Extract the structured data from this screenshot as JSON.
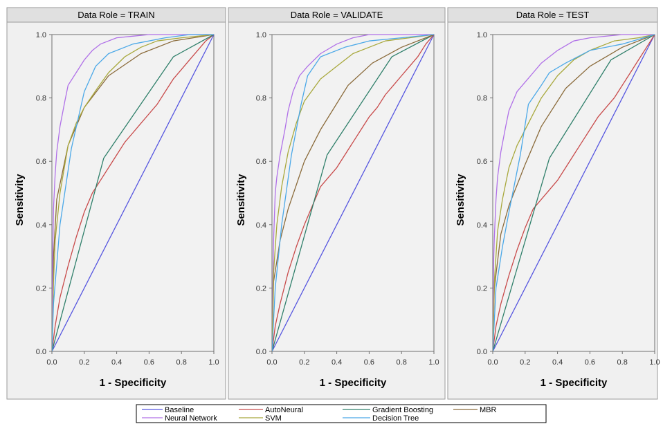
{
  "chart_data": {
    "type": "line",
    "xlabel": "1 - Specificity",
    "ylabel": "Sensitivity",
    "xlim": [
      0,
      1
    ],
    "ylim": [
      0,
      1
    ],
    "xticks": [
      "0.0",
      "0.2",
      "0.4",
      "0.6",
      "0.8",
      "1.0"
    ],
    "yticks": [
      "0.0",
      "0.2",
      "0.4",
      "0.6",
      "0.8",
      "1.0"
    ],
    "grid": false,
    "legend_position": "bottom",
    "series_styles": [
      {
        "name": "Baseline",
        "color": "#5555e0"
      },
      {
        "name": "AutoNeural",
        "color": "#c84a4a"
      },
      {
        "name": "Gradient Boosting",
        "color": "#2f7f6a"
      },
      {
        "name": "MBR",
        "color": "#8a6a3a"
      },
      {
        "name": "Neural Network",
        "color": "#b070e8"
      },
      {
        "name": "SVM",
        "color": "#a8a83c"
      },
      {
        "name": "Decision Tree",
        "color": "#4aa8e8"
      }
    ],
    "panels": [
      {
        "title": "Data Role = TRAIN",
        "series": [
          {
            "name": "Baseline",
            "x": [
              0,
              1
            ],
            "y": [
              0,
              1
            ]
          },
          {
            "name": "AutoNeural",
            "x": [
              0,
              0.02,
              0.05,
              0.1,
              0.15,
              0.2,
              0.25,
              0.3,
              0.35,
              0.4,
              0.45,
              0.5,
              0.55,
              0.6,
              0.65,
              0.7,
              0.75,
              0.8,
              0.85,
              0.9,
              0.95,
              1
            ],
            "y": [
              0,
              0.08,
              0.17,
              0.27,
              0.36,
              0.44,
              0.5,
              0.54,
              0.58,
              0.62,
              0.66,
              0.69,
              0.72,
              0.75,
              0.78,
              0.82,
              0.86,
              0.89,
              0.92,
              0.95,
              0.98,
              1
            ]
          },
          {
            "name": "Gradient Boosting",
            "x": [
              0,
              0.32,
              0.75,
              1
            ],
            "y": [
              0,
              0.61,
              0.93,
              1
            ]
          },
          {
            "name": "MBR",
            "x": [
              0,
              0.01,
              0.03,
              0.1,
              0.2,
              0.35,
              0.55,
              0.75,
              1
            ],
            "y": [
              0,
              0.3,
              0.48,
              0.65,
              0.77,
              0.87,
              0.94,
              0.98,
              1
            ]
          },
          {
            "name": "Neural Network",
            "x": [
              0,
              0.005,
              0.01,
              0.02,
              0.03,
              0.05,
              0.08,
              0.1,
              0.15,
              0.2,
              0.25,
              0.3,
              0.4,
              0.5,
              0.6,
              0.8,
              1
            ],
            "y": [
              0,
              0.3,
              0.45,
              0.56,
              0.63,
              0.71,
              0.79,
              0.84,
              0.88,
              0.92,
              0.95,
              0.97,
              0.99,
              0.995,
              1,
              1,
              1
            ]
          },
          {
            "name": "SVM",
            "x": [
              0,
              0.01,
              0.02,
              0.05,
              0.1,
              0.15,
              0.2,
              0.28,
              0.35,
              0.45,
              0.55,
              0.65,
              0.8,
              1
            ],
            "y": [
              0,
              0.22,
              0.35,
              0.5,
              0.65,
              0.72,
              0.77,
              0.83,
              0.88,
              0.93,
              0.96,
              0.98,
              0.99,
              1
            ]
          },
          {
            "name": "Decision Tree",
            "x": [
              0,
              0.01,
              0.05,
              0.12,
              0.2,
              0.27,
              0.35,
              0.5,
              0.7,
              0.85,
              1
            ],
            "y": [
              0,
              0.15,
              0.4,
              0.64,
              0.82,
              0.9,
              0.94,
              0.97,
              0.99,
              1,
              1
            ]
          }
        ]
      },
      {
        "title": "Data Role = VALIDATE",
        "series": [
          {
            "name": "Baseline",
            "x": [
              0,
              1
            ],
            "y": [
              0,
              1
            ]
          },
          {
            "name": "AutoNeural",
            "x": [
              0,
              0.02,
              0.05,
              0.1,
              0.15,
              0.2,
              0.25,
              0.3,
              0.35,
              0.4,
              0.45,
              0.5,
              0.55,
              0.6,
              0.65,
              0.7,
              0.75,
              0.8,
              0.85,
              0.9,
              0.95,
              1
            ],
            "y": [
              0,
              0.08,
              0.15,
              0.25,
              0.33,
              0.4,
              0.46,
              0.52,
              0.55,
              0.58,
              0.62,
              0.66,
              0.7,
              0.74,
              0.77,
              0.81,
              0.84,
              0.87,
              0.9,
              0.93,
              0.97,
              1
            ]
          },
          {
            "name": "Gradient Boosting",
            "x": [
              0,
              0.34,
              0.74,
              1
            ],
            "y": [
              0,
              0.62,
              0.93,
              1
            ]
          },
          {
            "name": "MBR",
            "x": [
              0,
              0.01,
              0.05,
              0.1,
              0.2,
              0.3,
              0.47,
              0.62,
              0.8,
              1
            ],
            "y": [
              0,
              0.22,
              0.35,
              0.45,
              0.6,
              0.7,
              0.84,
              0.91,
              0.96,
              1
            ]
          },
          {
            "name": "Neural Network",
            "x": [
              0,
              0.005,
              0.01,
              0.02,
              0.03,
              0.05,
              0.08,
              0.1,
              0.13,
              0.17,
              0.22,
              0.3,
              0.4,
              0.5,
              0.6,
              0.8,
              1
            ],
            "y": [
              0,
              0.2,
              0.35,
              0.5,
              0.55,
              0.62,
              0.7,
              0.76,
              0.82,
              0.87,
              0.9,
              0.94,
              0.97,
              0.99,
              1,
              1,
              1
            ]
          },
          {
            "name": "SVM",
            "x": [
              0,
              0.01,
              0.03,
              0.06,
              0.1,
              0.15,
              0.2,
              0.3,
              0.4,
              0.5,
              0.6,
              0.7,
              0.85,
              1
            ],
            "y": [
              0,
              0.25,
              0.4,
              0.52,
              0.63,
              0.72,
              0.79,
              0.86,
              0.9,
              0.94,
              0.96,
              0.98,
              0.99,
              1
            ]
          },
          {
            "name": "Decision Tree",
            "x": [
              0,
              0.02,
              0.06,
              0.12,
              0.18,
              0.22,
              0.3,
              0.45,
              0.6,
              0.8,
              1
            ],
            "y": [
              0,
              0.2,
              0.4,
              0.62,
              0.78,
              0.87,
              0.93,
              0.96,
              0.98,
              0.99,
              1
            ]
          }
        ]
      },
      {
        "title": "Data Role = TEST",
        "series": [
          {
            "name": "Baseline",
            "x": [
              0,
              1
            ],
            "y": [
              0,
              1
            ]
          },
          {
            "name": "AutoNeural",
            "x": [
              0,
              0.02,
              0.05,
              0.1,
              0.15,
              0.2,
              0.25,
              0.3,
              0.35,
              0.4,
              0.45,
              0.5,
              0.55,
              0.6,
              0.65,
              0.7,
              0.75,
              0.8,
              0.85,
              0.9,
              0.95,
              1
            ],
            "y": [
              0,
              0.08,
              0.15,
              0.24,
              0.32,
              0.39,
              0.45,
              0.48,
              0.51,
              0.54,
              0.58,
              0.62,
              0.66,
              0.7,
              0.74,
              0.77,
              0.8,
              0.84,
              0.88,
              0.92,
              0.96,
              1
            ]
          },
          {
            "name": "Gradient Boosting",
            "x": [
              0,
              0.35,
              0.73,
              1
            ],
            "y": [
              0,
              0.61,
              0.92,
              1
            ]
          },
          {
            "name": "MBR",
            "x": [
              0,
              0.01,
              0.05,
              0.1,
              0.2,
              0.3,
              0.45,
              0.6,
              0.8,
              1
            ],
            "y": [
              0,
              0.2,
              0.37,
              0.46,
              0.59,
              0.71,
              0.83,
              0.9,
              0.96,
              1
            ]
          },
          {
            "name": "Neural Network",
            "x": [
              0,
              0.005,
              0.01,
              0.02,
              0.03,
              0.05,
              0.08,
              0.1,
              0.15,
              0.2,
              0.25,
              0.3,
              0.4,
              0.5,
              0.6,
              0.8,
              1
            ],
            "y": [
              0,
              0.28,
              0.36,
              0.48,
              0.55,
              0.63,
              0.71,
              0.76,
              0.82,
              0.85,
              0.88,
              0.91,
              0.95,
              0.98,
              0.99,
              1,
              1
            ]
          },
          {
            "name": "SVM",
            "x": [
              0,
              0.01,
              0.03,
              0.06,
              0.1,
              0.15,
              0.2,
              0.3,
              0.4,
              0.5,
              0.6,
              0.75,
              0.9,
              1
            ],
            "y": [
              0,
              0.22,
              0.38,
              0.48,
              0.58,
              0.65,
              0.7,
              0.8,
              0.87,
              0.92,
              0.95,
              0.98,
              0.99,
              1
            ]
          },
          {
            "name": "Decision Tree",
            "x": [
              0,
              0.02,
              0.06,
              0.1,
              0.17,
              0.22,
              0.3,
              0.35,
              0.45,
              0.6,
              0.8,
              1
            ],
            "y": [
              0,
              0.2,
              0.33,
              0.44,
              0.62,
              0.78,
              0.84,
              0.88,
              0.91,
              0.95,
              0.97,
              1
            ]
          }
        ]
      }
    ]
  }
}
